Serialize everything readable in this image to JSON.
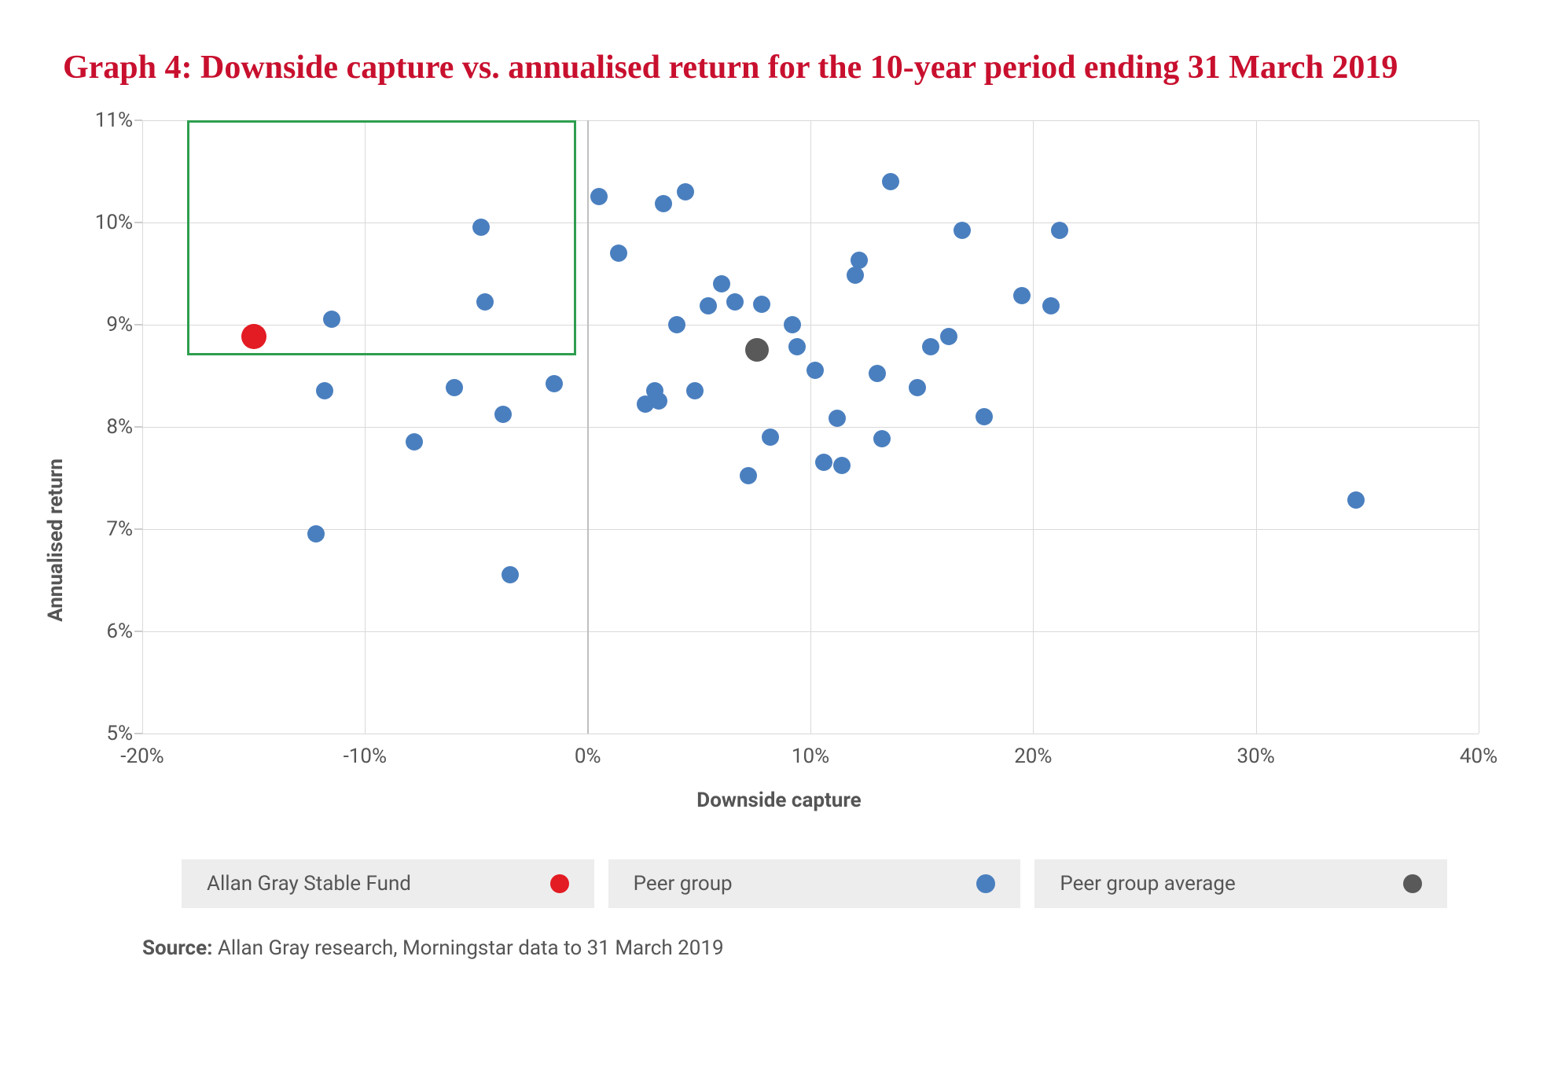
{
  "title": "Graph 4: Downside capture vs. annualised return for the 10-year period ending 31 March 2019",
  "title_color": "#c8102e",
  "title_fontsize": 42,
  "chart": {
    "type": "scatter",
    "background_color": "#ffffff",
    "grid_color": "#d9d9d9",
    "zero_line_color": "#bfbfbf",
    "x": {
      "label": "Downside capture",
      "min": -20,
      "max": 40,
      "tick_step": 10,
      "tick_format_suffix": "%"
    },
    "y": {
      "label": "Annualised return",
      "min": 5,
      "max": 11,
      "tick_step": 1,
      "tick_format_suffix": "%"
    },
    "label_fontsize": 26,
    "tick_fontsize": 26,
    "axis_label_fontweight": 700,
    "series": [
      {
        "name": "Peer group",
        "color": "#4a7fbf",
        "marker_radius": 11,
        "points": [
          {
            "x": -12.2,
            "y": 6.95
          },
          {
            "x": -11.8,
            "y": 8.35
          },
          {
            "x": -11.5,
            "y": 9.05
          },
          {
            "x": -7.8,
            "y": 7.85
          },
          {
            "x": -6.0,
            "y": 8.38
          },
          {
            "x": -4.8,
            "y": 9.95
          },
          {
            "x": -4.6,
            "y": 9.22
          },
          {
            "x": -3.8,
            "y": 8.12
          },
          {
            "x": -3.5,
            "y": 6.55
          },
          {
            "x": -1.5,
            "y": 8.42
          },
          {
            "x": 0.5,
            "y": 10.25
          },
          {
            "x": 1.4,
            "y": 9.7
          },
          {
            "x": 2.6,
            "y": 8.22
          },
          {
            "x": 3.0,
            "y": 8.35
          },
          {
            "x": 3.2,
            "y": 8.25
          },
          {
            "x": 3.4,
            "y": 10.18
          },
          {
            "x": 4.0,
            "y": 9.0
          },
          {
            "x": 4.4,
            "y": 10.3
          },
          {
            "x": 4.8,
            "y": 8.35
          },
          {
            "x": 5.4,
            "y": 9.18
          },
          {
            "x": 6.0,
            "y": 9.4
          },
          {
            "x": 6.6,
            "y": 9.22
          },
          {
            "x": 7.2,
            "y": 7.52
          },
          {
            "x": 7.8,
            "y": 9.2
          },
          {
            "x": 8.2,
            "y": 7.9
          },
          {
            "x": 9.2,
            "y": 9.0
          },
          {
            "x": 9.4,
            "y": 8.78
          },
          {
            "x": 10.2,
            "y": 8.55
          },
          {
            "x": 10.6,
            "y": 7.65
          },
          {
            "x": 11.2,
            "y": 8.08
          },
          {
            "x": 11.4,
            "y": 7.62
          },
          {
            "x": 12.0,
            "y": 9.48
          },
          {
            "x": 12.2,
            "y": 9.63
          },
          {
            "x": 13.0,
            "y": 8.52
          },
          {
            "x": 13.2,
            "y": 7.88
          },
          {
            "x": 13.6,
            "y": 10.4
          },
          {
            "x": 14.8,
            "y": 8.38
          },
          {
            "x": 15.4,
            "y": 8.78
          },
          {
            "x": 16.8,
            "y": 9.92
          },
          {
            "x": 16.2,
            "y": 8.88
          },
          {
            "x": 17.8,
            "y": 8.1
          },
          {
            "x": 19.5,
            "y": 9.28
          },
          {
            "x": 20.8,
            "y": 9.18
          },
          {
            "x": 21.2,
            "y": 9.92
          },
          {
            "x": 34.5,
            "y": 7.28
          }
        ]
      },
      {
        "name": "Peer group average",
        "color": "#595959",
        "marker_radius": 15,
        "points": [
          {
            "x": 7.6,
            "y": 8.75
          }
        ]
      },
      {
        "name": "Allan Gray Stable Fund",
        "color": "#e31b23",
        "marker_radius": 16,
        "points": [
          {
            "x": -15.0,
            "y": 8.88
          }
        ]
      }
    ],
    "highlight_box": {
      "x_min": -18.0,
      "x_max": -0.5,
      "y_min": 8.7,
      "y_max": 11.0,
      "border_color": "#2e9e4f",
      "border_width": 3
    }
  },
  "legend": {
    "background_color": "#ededed",
    "fontsize": 26,
    "items": [
      {
        "label": "Allan Gray Stable Fund",
        "dot_color": "#e31b23"
      },
      {
        "label": "Peer group",
        "dot_color": "#4a7fbf"
      },
      {
        "label": "Peer group average",
        "dot_color": "#595959"
      }
    ]
  },
  "source": {
    "prefix": "Source:",
    "text": " Allan Gray research, Morningstar data to 31 March 2019"
  }
}
